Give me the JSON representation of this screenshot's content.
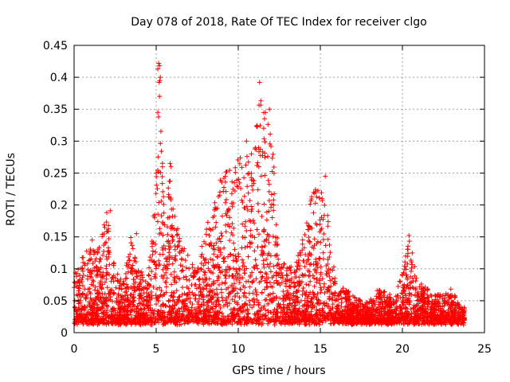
{
  "chart_data": {
    "type": "scatter",
    "title": "Day 078 of 2018, Rate Of TEC Index for receiver clgo",
    "xlabel": "GPS time / hours",
    "ylabel": "ROTI / TECUs",
    "xlim": [
      0,
      25
    ],
    "ylim": [
      0,
      0.45
    ],
    "xticks": [
      "0",
      "5",
      "10",
      "15",
      "20",
      "25"
    ],
    "xtick_values": [
      0,
      5,
      10,
      15,
      20,
      25
    ],
    "yticks": [
      "0",
      "0.05",
      "0.1",
      "0.15",
      "0.2",
      "0.25",
      "0.3",
      "0.35",
      "0.4",
      "0.45"
    ],
    "ytick_values": [
      0,
      0.05,
      0.1,
      0.15,
      0.2,
      0.25,
      0.3,
      0.35,
      0.4,
      0.45
    ],
    "grid": true,
    "marker": "plus",
    "color": "#ff0000",
    "data_range_hours": [
      0,
      23.8
    ],
    "envelope": [
      {
        "x": 0.0,
        "ymax": 0.11
      },
      {
        "x": 0.5,
        "ymax": 0.12
      },
      {
        "x": 1.0,
        "ymax": 0.145
      },
      {
        "x": 1.5,
        "ymax": 0.13
      },
      {
        "x": 2.0,
        "ymax": 0.19
      },
      {
        "x": 2.5,
        "ymax": 0.1
      },
      {
        "x": 3.0,
        "ymax": 0.08
      },
      {
        "x": 3.5,
        "ymax": 0.16
      },
      {
        "x": 4.0,
        "ymax": 0.1
      },
      {
        "x": 4.5,
        "ymax": 0.08
      },
      {
        "x": 5.0,
        "ymax": 0.25
      },
      {
        "x": 5.2,
        "ymax": 0.42
      },
      {
        "x": 5.5,
        "ymax": 0.17
      },
      {
        "x": 5.8,
        "ymax": 0.26
      },
      {
        "x": 6.0,
        "ymax": 0.2
      },
      {
        "x": 6.5,
        "ymax": 0.14
      },
      {
        "x": 7.0,
        "ymax": 0.12
      },
      {
        "x": 7.5,
        "ymax": 0.1
      },
      {
        "x": 8.0,
        "ymax": 0.17
      },
      {
        "x": 8.5,
        "ymax": 0.2
      },
      {
        "x": 9.0,
        "ymax": 0.25
      },
      {
        "x": 9.5,
        "ymax": 0.26
      },
      {
        "x": 10.0,
        "ymax": 0.3
      },
      {
        "x": 10.5,
        "ymax": 0.28
      },
      {
        "x": 11.0,
        "ymax": 0.3
      },
      {
        "x": 11.4,
        "ymax": 0.39
      },
      {
        "x": 11.7,
        "ymax": 0.34
      },
      {
        "x": 12.0,
        "ymax": 0.35
      },
      {
        "x": 12.5,
        "ymax": 0.13
      },
      {
        "x": 13.0,
        "ymax": 0.1
      },
      {
        "x": 13.5,
        "ymax": 0.11
      },
      {
        "x": 14.0,
        "ymax": 0.16
      },
      {
        "x": 14.5,
        "ymax": 0.22
      },
      {
        "x": 15.0,
        "ymax": 0.24
      },
      {
        "x": 15.5,
        "ymax": 0.18
      },
      {
        "x": 16.0,
        "ymax": 0.08
      },
      {
        "x": 16.5,
        "ymax": 0.07
      },
      {
        "x": 17.0,
        "ymax": 0.06
      },
      {
        "x": 17.5,
        "ymax": 0.05
      },
      {
        "x": 18.0,
        "ymax": 0.05
      },
      {
        "x": 18.5,
        "ymax": 0.07
      },
      {
        "x": 19.0,
        "ymax": 0.07
      },
      {
        "x": 19.5,
        "ymax": 0.05
      },
      {
        "x": 20.0,
        "ymax": 0.1
      },
      {
        "x": 20.4,
        "ymax": 0.15
      },
      {
        "x": 21.0,
        "ymax": 0.08
      },
      {
        "x": 21.5,
        "ymax": 0.07
      },
      {
        "x": 22.0,
        "ymax": 0.06
      },
      {
        "x": 22.5,
        "ymax": 0.06
      },
      {
        "x": 23.0,
        "ymax": 0.07
      },
      {
        "x": 23.5,
        "ymax": 0.04
      },
      {
        "x": 23.8,
        "ymax": 0.04
      }
    ],
    "outliers": [
      {
        "x": 5.15,
        "y": 0.422
      },
      {
        "x": 5.2,
        "y": 0.418
      },
      {
        "x": 5.1,
        "y": 0.413
      },
      {
        "x": 5.25,
        "y": 0.4
      },
      {
        "x": 5.18,
        "y": 0.392
      },
      {
        "x": 5.2,
        "y": 0.37
      },
      {
        "x": 5.1,
        "y": 0.345
      },
      {
        "x": 5.15,
        "y": 0.338
      },
      {
        "x": 5.0,
        "y": 0.25
      },
      {
        "x": 5.85,
        "y": 0.265
      },
      {
        "x": 5.9,
        "y": 0.26
      },
      {
        "x": 2.2,
        "y": 0.191
      },
      {
        "x": 1.1,
        "y": 0.145
      },
      {
        "x": 11.3,
        "y": 0.392
      },
      {
        "x": 11.9,
        "y": 0.35
      },
      {
        "x": 11.6,
        "y": 0.335
      },
      {
        "x": 11.55,
        "y": 0.32
      },
      {
        "x": 10.5,
        "y": 0.3
      },
      {
        "x": 10.8,
        "y": 0.28
      },
      {
        "x": 15.3,
        "y": 0.245
      },
      {
        "x": 14.7,
        "y": 0.224
      },
      {
        "x": 20.4,
        "y": 0.152
      },
      {
        "x": 20.2,
        "y": 0.12
      },
      {
        "x": 2.0,
        "y": 0.115
      },
      {
        "x": 3.8,
        "y": 0.155
      },
      {
        "x": 4.9,
        "y": 0.18
      }
    ]
  }
}
